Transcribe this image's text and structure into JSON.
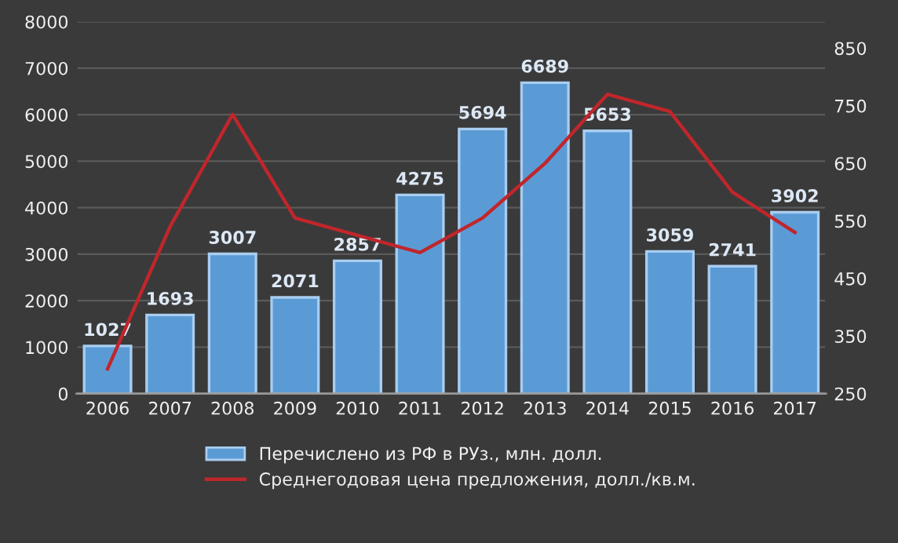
{
  "chart_data": {
    "type": "bar",
    "categories": [
      "2006",
      "2007",
      "2008",
      "2009",
      "2010",
      "2011",
      "2012",
      "2013",
      "2014",
      "2015",
      "2016",
      "2017"
    ],
    "series": [
      {
        "name": "Перечислено из РФ в РУз., млн. долл.",
        "color": "#5b9bd5",
        "values": [
          1027,
          1693,
          3007,
          2071,
          2857,
          4275,
          5694,
          6689,
          5653,
          3059,
          2741,
          3902
        ],
        "value_labels": [
          "1027",
          "1693",
          "3007",
          "2071",
          "2857",
          "4275",
          "5694",
          "6689",
          "5653",
          "3059",
          "2741",
          "3902"
        ]
      },
      {
        "name": "Среднегодовая цена предложения, долл./кв.м.",
        "type": "line",
        "axis": "y2",
        "color": "#c0262b",
        "values": [
          293,
          540,
          735,
          555,
          525,
          495,
          555,
          650,
          770,
          740,
          600,
          530
        ]
      }
    ],
    "ylim": [
      0,
      8000
    ],
    "yticks": [
      0,
      1000,
      2000,
      3000,
      4000,
      5000,
      6000,
      7000,
      8000
    ],
    "y2lim": [
      250,
      896
    ],
    "y2ticks": [
      250,
      350,
      450,
      550,
      650,
      750,
      850
    ],
    "grid": "y",
    "legend": "bottom",
    "marker": "none",
    "line_style": "solid"
  }
}
